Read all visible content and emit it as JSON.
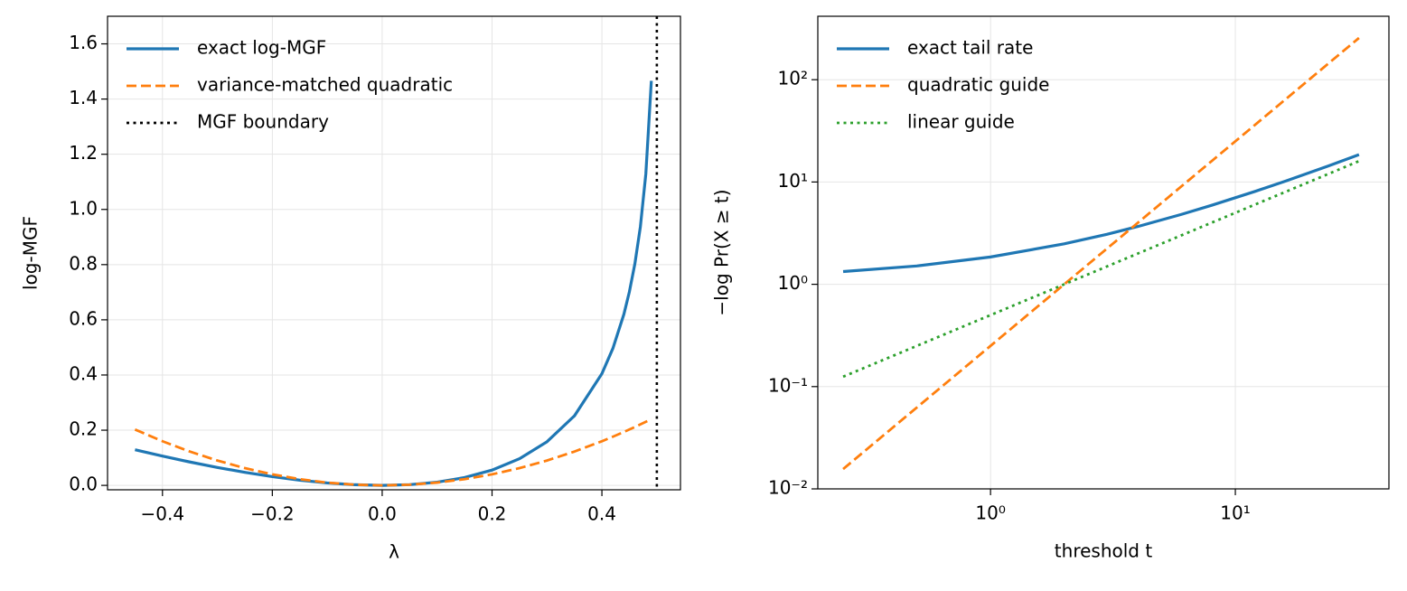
{
  "chart_data": [
    {
      "type": "line",
      "xlabel": "λ",
      "ylabel": "log-MGF",
      "x": [
        -0.45,
        -0.4,
        -0.35,
        -0.3,
        -0.25,
        -0.2,
        -0.15,
        -0.1,
        -0.05,
        0,
        0.05,
        0.1,
        0.15,
        0.2,
        0.25,
        0.3,
        0.35,
        0.4,
        0.42,
        0.44,
        0.45,
        0.46,
        0.47,
        0.48,
        0.49
      ],
      "series": [
        {
          "name": "exact log-MGF",
          "color": "#1f77b4",
          "style": "solid",
          "values": [
            0.1291,
            0.1061,
            0.0847,
            0.065,
            0.0473,
            0.0318,
            0.0188,
            0.0088,
            0.0023,
            0,
            0.0027,
            0.0116,
            0.0283,
            0.0554,
            0.0966,
            0.1581,
            0.252,
            0.4047,
            0.4963,
            0.6201,
            0.7013,
            0.8029,
            0.9367,
            1.1294,
            1.466
          ]
        },
        {
          "name": "variance-matched quadratic",
          "color": "#ff7f0e",
          "style": "dashed",
          "values": [
            0.2025,
            0.16,
            0.1225,
            0.09,
            0.0625,
            0.04,
            0.0225,
            0.01,
            0.0025,
            0,
            0.0025,
            0.01,
            0.0225,
            0.04,
            0.0625,
            0.09,
            0.1225,
            0.16,
            0.1764,
            0.1936,
            0.2025,
            0.2116,
            0.2209,
            0.2304,
            0.2401
          ]
        }
      ],
      "vlines": [
        {
          "name": "MGF boundary",
          "x": 0.5,
          "color": "#000000",
          "style": "dotted"
        }
      ],
      "xlim": [
        -0.5,
        0.543
      ],
      "ylim": [
        -0.016,
        1.7
      ],
      "xticks": [
        {
          "value": -0.4,
          "label": "−0.4"
        },
        {
          "value": -0.2,
          "label": "−0.2"
        },
        {
          "value": 0,
          "label": "0.0"
        },
        0.2,
        0.4
      ],
      "yticks": [
        {
          "value": 0,
          "label": "0.0"
        },
        0.2,
        0.4,
        0.6,
        0.8,
        {
          "value": 1,
          "label": "1.0"
        },
        1.2,
        1.4,
        1.6
      ],
      "grid": true,
      "legend": "upper-left"
    },
    {
      "type": "line",
      "xlabel": "threshold t",
      "ylabel": "−log Pr(X ≥ t)",
      "xscale": "log",
      "yscale": "log",
      "x": [
        0.25,
        0.5,
        1,
        2,
        3,
        4,
        6,
        8,
        12,
        16,
        24,
        32
      ],
      "series": [
        {
          "name": "exact tail rate",
          "color": "#1f77b4",
          "style": "solid",
          "values": [
            1.333,
            1.511,
            1.85,
            2.486,
            3.09,
            3.675,
            4.81,
            5.915,
            8.074,
            10.19,
            14.37,
            18.51
          ]
        },
        {
          "name": "quadratic guide",
          "color": "#ff7f0e",
          "style": "dashed",
          "values": [
            0.015625,
            0.0625,
            0.25,
            1,
            2.25,
            4,
            9,
            16,
            36,
            64,
            144,
            256
          ]
        },
        {
          "name": "linear guide",
          "color": "#2ca02c",
          "style": "dotted",
          "values": [
            0.125,
            0.25,
            0.5,
            1,
            1.5,
            2,
            3,
            4,
            6,
            8,
            12,
            16
          ]
        }
      ],
      "xlim": [
        0.197,
        42.4
      ],
      "ylim": [
        0.01,
        417
      ],
      "xticks": [
        {
          "value": 1,
          "label": "10⁰"
        },
        {
          "value": 10,
          "label": "10¹"
        }
      ],
      "yticks": [
        {
          "value": 0.01,
          "label": "10⁻²"
        },
        {
          "value": 0.1,
          "label": "10⁻¹"
        },
        {
          "value": 1,
          "label": "10⁰"
        },
        {
          "value": 10,
          "label": "10¹"
        },
        {
          "value": 100,
          "label": "10²"
        }
      ],
      "grid": true,
      "legend": "upper-left"
    }
  ]
}
